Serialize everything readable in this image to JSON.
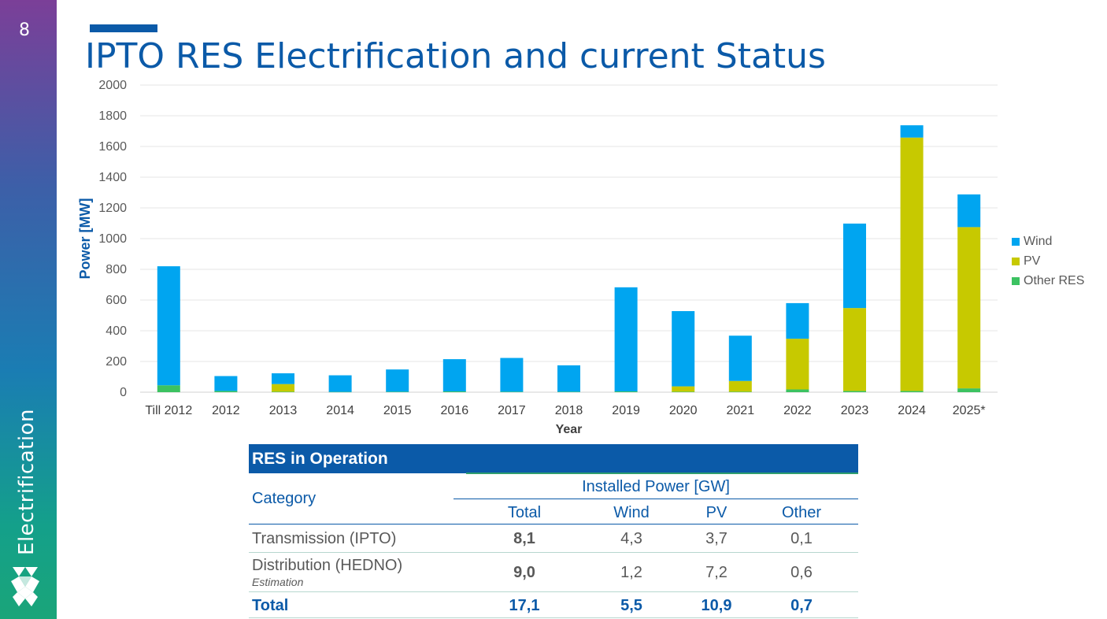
{
  "page": {
    "number": "8",
    "section": "Electrification",
    "title": "IPTO RES Electrification and current Status"
  },
  "colors": {
    "brand": "#0b5aa8",
    "wind": "#00a5f0",
    "pv": "#c7c900",
    "other": "#3cc261"
  },
  "chart_data": {
    "type": "bar",
    "stacked": true,
    "categories": [
      "Till 2012",
      "2012",
      "2013",
      "2014",
      "2015",
      "2016",
      "2017",
      "2018",
      "2019",
      "2020",
      "2021",
      "2022",
      "2023",
      "2024",
      "2025*"
    ],
    "series": [
      {
        "name": "Other RES",
        "color": "#3cc261",
        "values": [
          45,
          8,
          3,
          2,
          3,
          5,
          3,
          3,
          5,
          3,
          3,
          18,
          8,
          8,
          25
        ]
      },
      {
        "name": "PV",
        "color": "#c7c900",
        "values": [
          0,
          0,
          50,
          0,
          0,
          0,
          0,
          0,
          0,
          35,
          70,
          330,
          540,
          1650,
          1050
        ]
      },
      {
        "name": "Wind",
        "color": "#00a5f0",
        "values": [
          775,
          97,
          70,
          108,
          145,
          210,
          220,
          172,
          678,
          490,
          295,
          232,
          550,
          80,
          213
        ]
      }
    ],
    "legend_order": [
      "Wind",
      "PV",
      "Other RES"
    ],
    "xlabel": "Year",
    "ylabel": "Power [MW]",
    "ylim": [
      0,
      2000
    ],
    "yticks": [
      "0",
      "200",
      "400",
      "600",
      "800",
      "1000",
      "1200",
      "1400",
      "1600",
      "1800",
      "2000"
    ],
    "grid": true,
    "legend_position": "right"
  },
  "table": {
    "title": "RES in Operation",
    "category_header": "Category",
    "group_header": "Installed Power [GW]",
    "columns": [
      "Total",
      "Wind",
      "PV",
      "Other"
    ],
    "rows": [
      {
        "category": "Transmission (IPTO)",
        "note": "",
        "total": "8,1",
        "wind": "4,3",
        "pv": "3,7",
        "other": "0,1"
      },
      {
        "category": "Distribution (HEDNO)",
        "note": "Estimation",
        "total": "9,0",
        "wind": "1,2",
        "pv": "7,2",
        "other": "0,6"
      }
    ],
    "total_row": {
      "category": "Total",
      "total": "17,1",
      "wind": "5,5",
      "pv": "10,9",
      "other": "0,7"
    }
  }
}
